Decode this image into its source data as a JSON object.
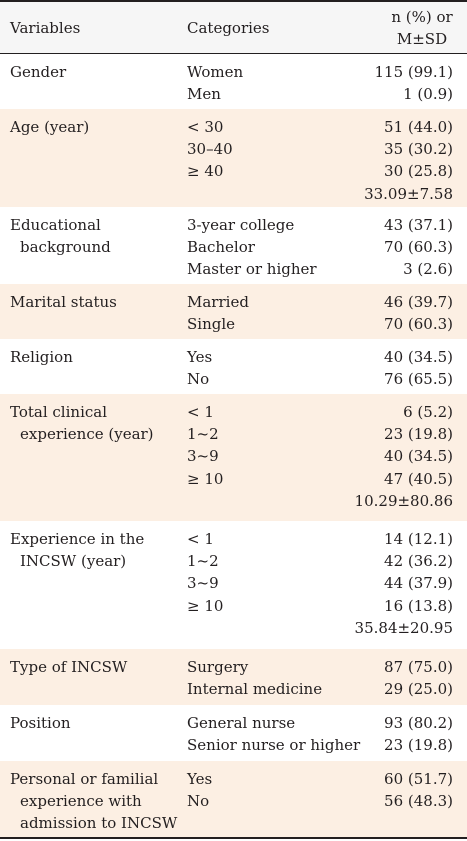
{
  "header": {
    "variables": "Variables",
    "categories": "Categories",
    "stat_line1": "n (%) or",
    "stat_line2": "M±SD"
  },
  "rows": [
    {
      "var": [
        "Gender"
      ],
      "cats": [
        "Women",
        "Men"
      ],
      "vals": [
        "115 (99.1)",
        "1 (0.9)"
      ]
    },
    {
      "var": [
        "Age (year)"
      ],
      "cats": [
        "< 30",
        "30–40",
        "≥ 40"
      ],
      "vals": [
        "51 (44.0)",
        "35 (30.2)",
        "30 (25.8)",
        "33.09±7.58"
      ]
    },
    {
      "var": [
        "Educational",
        "background"
      ],
      "cats": [
        "3-year college",
        "Bachelor",
        "Master or higher"
      ],
      "vals": [
        "43 (37.1)",
        "70 (60.3)",
        "3 (2.6)"
      ]
    },
    {
      "var": [
        "Marital status"
      ],
      "cats": [
        "Married",
        "Single"
      ],
      "vals": [
        "46 (39.7)",
        "70 (60.3)"
      ]
    },
    {
      "var": [
        "Religion"
      ],
      "cats": [
        "Yes",
        "No"
      ],
      "vals": [
        "40 (34.5)",
        "76 (65.5)"
      ]
    },
    {
      "var": [
        "Total clinical",
        "experience (year)"
      ],
      "cats": [
        "< 1",
        "1~2",
        "3~9",
        "≥ 10"
      ],
      "vals": [
        "6 (5.2)",
        "23 (19.8)",
        "40 (34.5)",
        "47 (40.5)",
        "10.29±80.86"
      ]
    },
    {
      "var": [
        "Experience in the",
        "INCSW (year)"
      ],
      "cats": [
        "< 1",
        "1~2",
        "3~9",
        "≥ 10"
      ],
      "vals": [
        "14 (12.1)",
        "42 (36.2)",
        "44 (37.9)",
        "16 (13.8)",
        "35.84±20.95"
      ]
    },
    {
      "var": [
        "Type of INCSW"
      ],
      "cats": [
        "Surgery",
        "Internal medicine"
      ],
      "vals": [
        "87 (75.0)",
        "29 (25.0)"
      ]
    },
    {
      "var": [
        "Position"
      ],
      "cats": [
        "General nurse",
        "Senior nurse or higher"
      ],
      "vals": [
        "93 (80.2)",
        "23 (19.8)"
      ]
    },
    {
      "var": [
        "Personal or familial",
        "experience with",
        "admission to INCSW"
      ],
      "cats": [
        "Yes",
        "No"
      ],
      "vals": [
        "60 (51.7)",
        "56 (48.3)"
      ]
    }
  ]
}
